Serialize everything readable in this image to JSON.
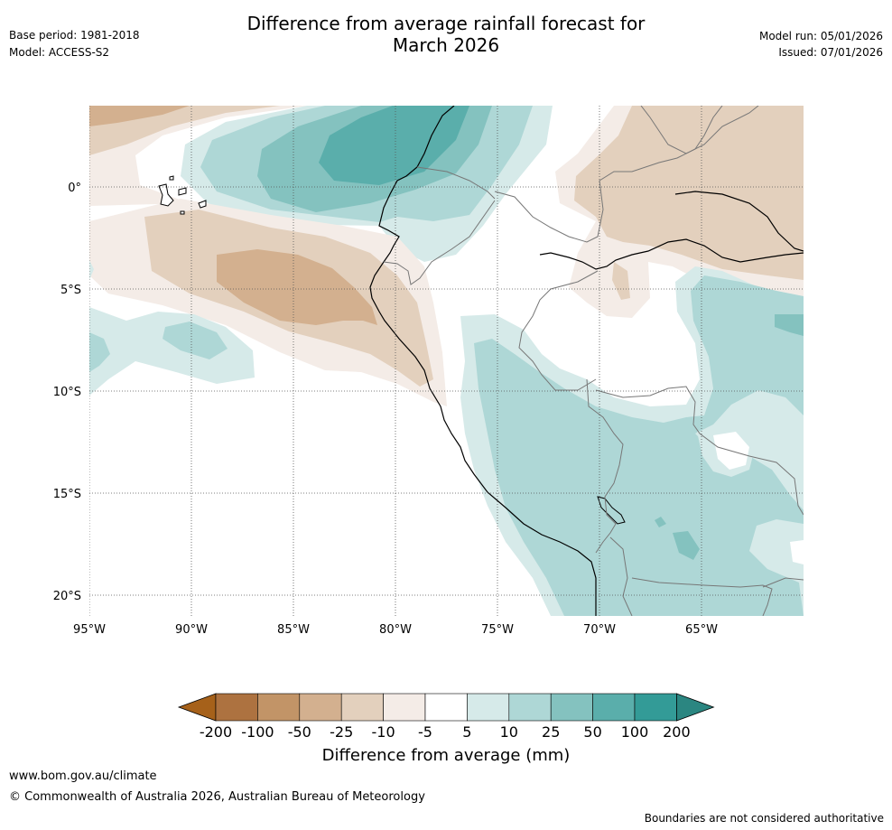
{
  "header": {
    "title_line1": "Difference from average rainfall forecast for",
    "title_line2": "March 2026",
    "base_period": "Base period: 1981-2018",
    "model": "Model: ACCESS-S2",
    "model_run": "Model run: 05/01/2026",
    "issued": "Issued: 07/01/2026"
  },
  "map": {
    "lat_labels": [
      "0°",
      "5°S",
      "10°S",
      "15°S",
      "20°S"
    ],
    "lon_labels": [
      "95°W",
      "90°W",
      "85°W",
      "80°W",
      "75°W",
      "70°W",
      "65°W"
    ]
  },
  "colorbar": {
    "ticks": [
      "-200",
      "-100",
      "-50",
      "-25",
      "-10",
      "-5",
      "5",
      "10",
      "25",
      "50",
      "100",
      "200"
    ],
    "colors": [
      "#a6611a",
      "#ad7240",
      "#c29467",
      "#d3b08f",
      "#e3d0bd",
      "#f4ece7",
      "#ffffff",
      "#d6eae9",
      "#aed7d6",
      "#84c2bf",
      "#5aaeab",
      "#339b97",
      "#2b8681"
    ],
    "title": "Difference from average (mm)"
  },
  "footer": {
    "url": "www.bom.gov.au/climate",
    "copyright": "© Commonwealth of Australia 2026, Australian Bureau of Meteorology",
    "disclaimer": "Boundaries are not considered authoritative"
  }
}
